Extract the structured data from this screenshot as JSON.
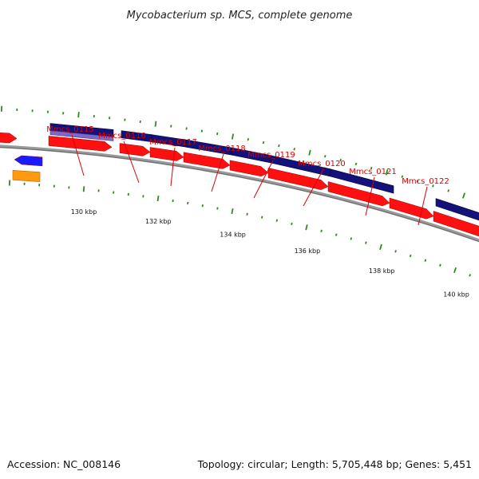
{
  "title": "Mycobacterium sp. MCS, complete genome",
  "accession": "Accession: NC_008146",
  "summary": "Topology: circular; Length: 5,705,448 bp; Genes: 5,451",
  "colors": {
    "backbone": "#8a8a8a",
    "tick": "#2e8b1e",
    "cds": "#ff1010",
    "gene": "#12127a",
    "gene_light": "#7b68c8",
    "misc_blue": "#1a1aff",
    "misc_orange": "#ff9a10",
    "label": "#dd0000"
  },
  "ticks": [
    {
      "label": "130 kbp",
      "kbp": 130
    },
    {
      "label": "132 kbp",
      "kbp": 132
    },
    {
      "label": "134 kbp",
      "kbp": 134
    },
    {
      "label": "136 kbp",
      "kbp": 136
    },
    {
      "label": "138 kbp",
      "kbp": 138
    },
    {
      "label": "140 kbp",
      "kbp": 140
    }
  ],
  "gene_labels": [
    "Mmcs_0115",
    "Mmcs_0116",
    "Mmcs_0117",
    "Mmcs_0118",
    "Mmcs_0119",
    "Mmcs_0120",
    "Mmcs_0121",
    "Mmcs_0122"
  ]
}
